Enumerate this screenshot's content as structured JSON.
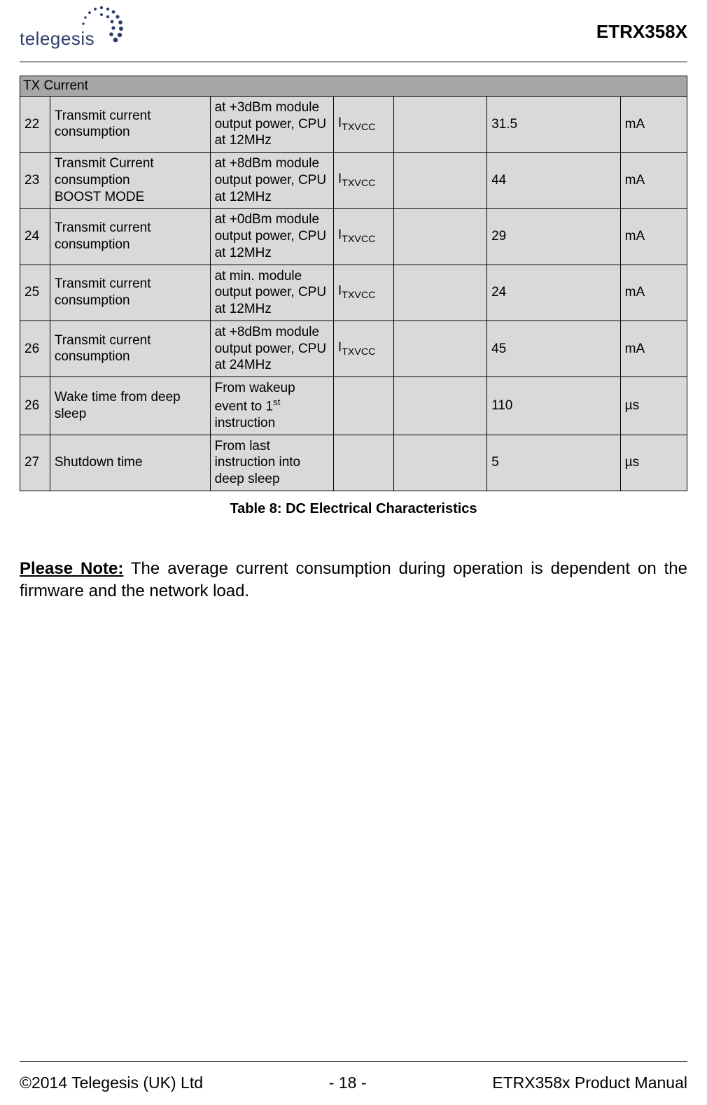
{
  "header": {
    "logo_text": "telegesis",
    "product_code": "ETRX358X",
    "logo_dot_fill": "#2d3e6b",
    "logo_text_color": "#2d3e6b"
  },
  "table": {
    "section_header": "TX Current",
    "section_bg": "#a6a6a6",
    "row_bg": "#d9d9d9",
    "border_color": "#000000",
    "column_widths_pct": [
      4.5,
      24,
      18.5,
      9,
      14,
      20,
      10
    ],
    "rows": [
      {
        "num": "22",
        "parameter": "Transmit current consumption",
        "condition": "at +3dBm module output  power, CPU at 12MHz",
        "symbol_base": "I",
        "symbol_sub": "TXVCC",
        "min": "",
        "typ": "31.5",
        "unit": "mA"
      },
      {
        "num": "23",
        "parameter": "Transmit Current consumption\nBOOST MODE",
        "condition": "at +8dBm module output  power, CPU at 12MHz",
        "symbol_base": "I",
        "symbol_sub": "TXVCC",
        "min": "",
        "typ": "44",
        "unit": "mA"
      },
      {
        "num": "24",
        "parameter": "Transmit current consumption",
        "condition": "at +0dBm module output  power, CPU at 12MHz",
        "symbol_base": "I",
        "symbol_sub": "TXVCC",
        "min": "",
        "typ": "29",
        "unit": "mA"
      },
      {
        "num": "25",
        "parameter": "Transmit current consumption",
        "condition": "at min. module output  power, CPU at 12MHz",
        "symbol_base": "I",
        "symbol_sub": "TXVCC",
        "min": "",
        "typ": "24",
        "unit": "mA"
      },
      {
        "num": "26",
        "parameter": "Transmit current consumption",
        "condition": "at +8dBm module output  power, CPU at 24MHz",
        "symbol_base": "I",
        "symbol_sub": "TXVCC",
        "min": "",
        "typ": "45",
        "unit": "mA"
      },
      {
        "num": "26",
        "parameter": "Wake time from deep sleep",
        "condition_html": "From wakeup event to 1<span class=\"sup\">st</span> instruction",
        "symbol_base": "",
        "symbol_sub": "",
        "min": "",
        "typ": "110",
        "unit": "µs"
      },
      {
        "num": "27",
        "parameter": "Shutdown time",
        "condition": "From last instruction into deep sleep",
        "symbol_base": "",
        "symbol_sub": "",
        "min": "",
        "typ": "5",
        "unit": "µs"
      }
    ]
  },
  "caption": "Table 8:  DC Electrical Characteristics",
  "note": {
    "lead": "Please Note:",
    "body": " The average current consumption during operation is dependent on the firmware and the network load."
  },
  "footer": {
    "left": "©2014 Telegesis (UK) Ltd",
    "center": "- 18 -",
    "right": "ETRX358x Product Manual"
  }
}
